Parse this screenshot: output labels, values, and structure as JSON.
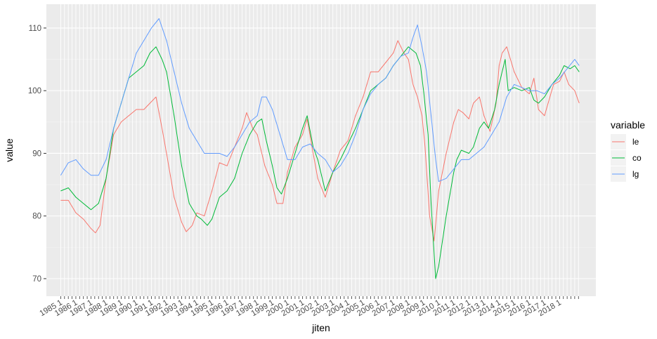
{
  "chart_data": {
    "type": "line",
    "xlabel": "jiten",
    "ylabel": "value",
    "x_start": "1985 1",
    "x_end": "2019 4",
    "x_tick_labels": [
      "1985 1",
      "1986 1",
      "1987 1",
      "1988 1",
      "1989 1",
      "1990 1",
      "1991 1",
      "1992 1",
      "1993 1",
      "1994 1",
      "1995 1",
      "1996 1",
      "1997 1",
      "1998 1",
      "1999 1",
      "2000 1",
      "2001 1",
      "2002 1",
      "2003 1",
      "2004 1",
      "2005 1",
      "2006 1",
      "2007 1",
      "2008 1",
      "2009 1",
      "2010 1",
      "2011 1",
      "2012 1",
      "2013 1",
      "2014 1",
      "2015 1",
      "2016 1",
      "2017 1",
      "2018 1"
    ],
    "x_tick_years": [
      1985,
      1986,
      1987,
      1988,
      1989,
      1990,
      1991,
      1992,
      1993,
      1994,
      1995,
      1996,
      1997,
      1998,
      1999,
      2000,
      2001,
      2002,
      2003,
      2004,
      2005,
      2006,
      2007,
      2008,
      2009,
      2010,
      2011,
      2012,
      2013,
      2014,
      2015,
      2016,
      2017,
      2018
    ],
    "y_ticks": [
      70,
      80,
      90,
      100,
      110
    ],
    "ylim": [
      67.2,
      113.8
    ],
    "grid": true,
    "legend": {
      "title": "variable",
      "position": "right"
    },
    "series": [
      {
        "name": "le",
        "color": "#F8766D",
        "x": [
          1985.0,
          1985.5,
          1986.0,
          1986.5,
          1987.0,
          1987.3,
          1987.6,
          1988.0,
          1988.5,
          1989.0,
          1989.5,
          1990.0,
          1990.5,
          1990.9,
          1991.3,
          1991.7,
          1992.0,
          1992.5,
          1993.0,
          1993.3,
          1993.7,
          1994.0,
          1994.5,
          1995.0,
          1995.5,
          1996.0,
          1996.5,
          1997.0,
          1997.3,
          1997.7,
          1998.0,
          1998.5,
          1999.0,
          1999.3,
          1999.7,
          2000.0,
          2000.5,
          2001.0,
          2001.3,
          2001.7,
          2002.0,
          2002.5,
          2003.0,
          2003.5,
          2004.0,
          2004.5,
          2005.0,
          2005.5,
          2006.0,
          2006.5,
          2007.0,
          2007.3,
          2007.7,
          2008.0,
          2008.3,
          2008.6,
          2008.9,
          2009.1,
          2009.4,
          2009.7,
          2010.0,
          2010.5,
          2011.0,
          2011.3,
          2011.6,
          2012.0,
          2012.3,
          2012.7,
          2013.0,
          2013.4,
          2013.8,
          2014.0,
          2014.2,
          2014.5,
          2015.0,
          2015.5,
          2016.0,
          2016.3,
          2016.6,
          2017.0,
          2017.3,
          2017.6,
          2018.0,
          2018.3,
          2018.6,
          2019.0,
          2019.3
        ],
        "y": [
          82.5,
          82.5,
          80.5,
          79.5,
          78.0,
          77.3,
          78.5,
          86.0,
          93.0,
          95.0,
          96.0,
          97.0,
          97.0,
          98.0,
          99.0,
          94.0,
          90.0,
          83.0,
          79.0,
          77.5,
          78.5,
          80.5,
          80.0,
          84.0,
          88.5,
          88.0,
          91.0,
          94.0,
          96.5,
          94.0,
          93.0,
          88.0,
          85.0,
          82.0,
          82.0,
          87.0,
          91.0,
          93.0,
          95.5,
          90.0,
          86.0,
          83.0,
          87.0,
          90.5,
          92.0,
          96.0,
          99.0,
          103.0,
          103.0,
          104.5,
          106.0,
          108.0,
          106.0,
          105.0,
          101.0,
          99.0,
          96.0,
          91.0,
          80.0,
          76.0,
          84.0,
          90.0,
          95.0,
          97.0,
          96.5,
          95.5,
          98.0,
          99.0,
          96.0,
          93.5,
          98.0,
          104.0,
          106.0,
          107.0,
          103.0,
          100.5,
          99.5,
          102.0,
          97.0,
          96.0,
          98.5,
          101.0,
          101.5,
          103.0,
          101.0,
          100.0,
          98.0
        ]
      },
      {
        "name": "co",
        "color": "#00BA38",
        "x": [
          1985.0,
          1985.5,
          1986.0,
          1986.5,
          1987.0,
          1987.5,
          1988.0,
          1988.5,
          1989.0,
          1989.5,
          1990.0,
          1990.5,
          1990.9,
          1991.3,
          1991.7,
          1992.0,
          1992.5,
          1993.0,
          1993.5,
          1994.0,
          1994.3,
          1994.7,
          1995.0,
          1995.5,
          1996.0,
          1996.5,
          1997.0,
          1997.5,
          1998.0,
          1998.3,
          1998.6,
          1999.0,
          1999.3,
          1999.6,
          2000.0,
          2000.5,
          2001.0,
          2001.3,
          2001.7,
          2002.0,
          2002.5,
          2003.0,
          2003.5,
          2004.0,
          2004.5,
          2005.0,
          2005.5,
          2006.0,
          2006.5,
          2007.0,
          2007.5,
          2008.0,
          2008.5,
          2008.8,
          2009.0,
          2009.3,
          2009.5,
          2009.8,
          2010.0,
          2010.5,
          2011.0,
          2011.2,
          2011.5,
          2012.0,
          2012.3,
          2012.7,
          2013.0,
          2013.3,
          2013.7,
          2014.0,
          2014.2,
          2014.4,
          2014.6,
          2015.0,
          2015.5,
          2016.0,
          2016.3,
          2016.6,
          2017.0,
          2017.5,
          2018.0,
          2018.3,
          2018.7,
          2019.0,
          2019.3
        ],
        "y": [
          84.0,
          84.5,
          83.0,
          82.0,
          81.0,
          82.0,
          86.0,
          94.0,
          98.0,
          102.0,
          103.0,
          104.0,
          106.0,
          107.0,
          105.0,
          103.0,
          96.0,
          88.0,
          82.0,
          80.0,
          79.5,
          78.5,
          79.5,
          83.0,
          84.0,
          86.0,
          90.0,
          93.0,
          95.0,
          95.5,
          92.0,
          88.0,
          84.5,
          83.5,
          86.0,
          90.0,
          94.0,
          96.0,
          91.0,
          89.0,
          84.0,
          87.0,
          89.0,
          91.5,
          94.0,
          97.0,
          100.0,
          101.0,
          102.0,
          104.0,
          105.5,
          107.0,
          106.0,
          104.0,
          100.0,
          93.0,
          82.0,
          70.0,
          72.0,
          80.0,
          87.0,
          89.0,
          90.5,
          90.0,
          91.0,
          94.0,
          95.0,
          94.0,
          97.0,
          101.0,
          103.0,
          105.0,
          100.0,
          100.5,
          100.0,
          100.5,
          98.5,
          98.0,
          99.0,
          101.0,
          102.5,
          104.0,
          103.5,
          104.0,
          103.0
        ]
      },
      {
        "name": "lg",
        "color": "#619CFF",
        "x": [
          1985.0,
          1985.5,
          1986.0,
          1986.5,
          1987.0,
          1987.5,
          1988.0,
          1988.5,
          1989.0,
          1989.5,
          1990.0,
          1990.5,
          1991.0,
          1991.5,
          1992.0,
          1992.5,
          1993.0,
          1993.5,
          1994.0,
          1994.5,
          1995.0,
          1995.5,
          1996.0,
          1996.5,
          1997.0,
          1997.5,
          1998.0,
          1998.3,
          1998.6,
          1999.0,
          1999.5,
          2000.0,
          2000.5,
          2001.0,
          2001.5,
          2002.0,
          2002.5,
          2003.0,
          2003.5,
          2004.0,
          2004.5,
          2005.0,
          2005.5,
          2006.0,
          2006.5,
          2007.0,
          2007.5,
          2008.0,
          2008.3,
          2008.6,
          2008.9,
          2009.2,
          2009.5,
          2009.8,
          2010.0,
          2010.5,
          2011.0,
          2011.5,
          2012.0,
          2012.5,
          2013.0,
          2013.5,
          2014.0,
          2014.5,
          2015.0,
          2015.5,
          2016.0,
          2016.5,
          2017.0,
          2017.5,
          2018.0,
          2018.5,
          2019.0,
          2019.3
        ],
        "y": [
          86.5,
          88.5,
          89.0,
          87.5,
          86.5,
          86.5,
          89.0,
          94.0,
          98.0,
          102.0,
          106.0,
          108.0,
          110.0,
          111.5,
          108.0,
          103.0,
          98.0,
          94.0,
          92.0,
          90.0,
          90.0,
          90.0,
          89.5,
          91.0,
          93.0,
          95.0,
          96.0,
          99.0,
          99.0,
          97.0,
          93.0,
          89.0,
          89.0,
          91.0,
          91.5,
          90.0,
          89.0,
          87.0,
          88.0,
          90.0,
          93.0,
          97.0,
          99.5,
          101.0,
          102.0,
          104.0,
          105.5,
          106.0,
          108.5,
          110.5,
          107.0,
          103.0,
          96.0,
          89.0,
          85.5,
          86.0,
          87.5,
          89.0,
          89.0,
          90.0,
          91.0,
          93.0,
          95.0,
          99.0,
          101.0,
          100.5,
          100.0,
          100.0,
          99.5,
          101.0,
          102.0,
          103.5,
          105.0,
          104.0
        ]
      }
    ]
  }
}
